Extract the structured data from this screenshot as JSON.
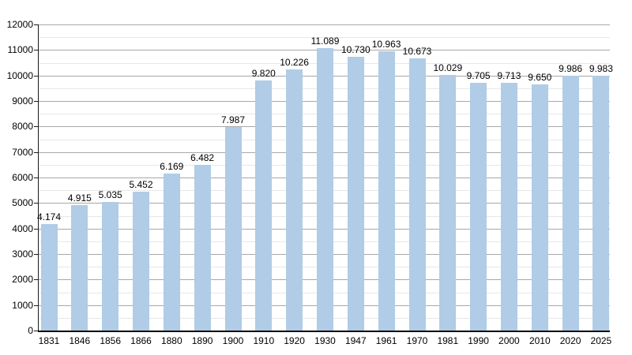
{
  "chart_data": {
    "type": "bar",
    "title": "",
    "xlabel": "",
    "ylabel": "",
    "categories": [
      "1831",
      "1846",
      "1856",
      "1866",
      "1880",
      "1890",
      "1900",
      "1910",
      "1920",
      "1930",
      "1947",
      "1961",
      "1970",
      "1981",
      "1990",
      "2000",
      "2010",
      "2020",
      "2025"
    ],
    "values": [
      4174,
      4915,
      5035,
      5452,
      6169,
      6482,
      7987,
      9820,
      10226,
      11089,
      10730,
      10963,
      10673,
      10029,
      9705,
      9713,
      9650,
      9986,
      9983
    ],
    "value_labels": [
      "4.174",
      "4.915",
      "5.035",
      "5.452",
      "6.169",
      "6.482",
      "7.987",
      "9.820",
      "10.226",
      "11.089",
      "10.730",
      "10.963",
      "10.673",
      "10.029",
      "9.705",
      "9.713",
      "9.650",
      "9.986",
      "9.983"
    ],
    "ylim": [
      0,
      12000
    ],
    "y_major_step": 1000,
    "y_minor_step": 500,
    "y_tick_labels": [
      "0",
      "1000",
      "2000",
      "3000",
      "4000",
      "5000",
      "6000",
      "7000",
      "8000",
      "9000",
      "10000",
      "11000",
      "12000"
    ],
    "grid": true,
    "legend": null,
    "colors": {
      "bar": "#b0cce6",
      "major_grid": "#a8a8a8",
      "minor_grid": "#e7e7e7",
      "axis": "#000000",
      "text": "#000000",
      "background": "#ffffff"
    }
  }
}
